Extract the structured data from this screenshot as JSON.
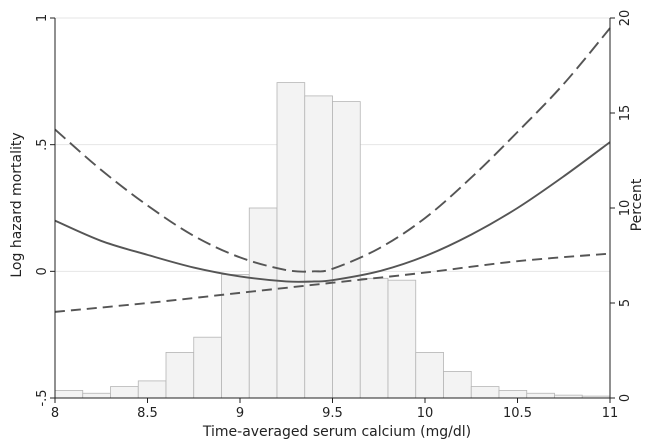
{
  "chart_data": {
    "type": "line",
    "xlabel": "Time-averaged serum calcium (mg/dl)",
    "ylabel_left": "Log hazard mortality",
    "ylabel_right": "Percent",
    "xlim": [
      8,
      11
    ],
    "ylim_left": [
      -0.5,
      1
    ],
    "ylim_right": [
      0,
      20
    ],
    "x_ticks": [
      {
        "value": 8,
        "label": "8"
      },
      {
        "value": 8.5,
        "label": "8.5"
      },
      {
        "value": 9,
        "label": "9"
      },
      {
        "value": 9.5,
        "label": "9.5"
      },
      {
        "value": 10,
        "label": "10"
      },
      {
        "value": 10.5,
        "label": "10.5"
      },
      {
        "value": 11,
        "label": "11"
      }
    ],
    "y_left_ticks": [
      {
        "value": -0.5,
        "label": "-.5"
      },
      {
        "value": 0,
        "label": "0"
      },
      {
        "value": 0.5,
        "label": ".5"
      },
      {
        "value": 1,
        "label": "1"
      }
    ],
    "y_right_ticks": [
      {
        "value": 0,
        "label": "0"
      },
      {
        "value": 5,
        "label": "5"
      },
      {
        "value": 10,
        "label": "10"
      },
      {
        "value": 15,
        "label": "15"
      },
      {
        "value": 20,
        "label": "20"
      }
    ],
    "grid": "horizontal lines at left-axis ticks",
    "histogram": {
      "axis": "right",
      "bin_width": 0.15,
      "bin_starts": [
        8.0,
        8.15,
        8.3,
        8.45,
        8.6,
        8.75,
        8.9,
        9.05,
        9.2,
        9.35,
        9.5,
        9.65,
        9.8,
        9.95,
        10.1,
        10.25,
        10.4,
        10.55,
        10.7,
        10.85
      ],
      "percent": [
        0.4,
        0.25,
        0.6,
        0.9,
        2.4,
        3.2,
        6.5,
        10.0,
        16.6,
        15.9,
        15.6,
        6.3,
        6.2,
        2.4,
        1.4,
        0.6,
        0.4,
        0.25,
        0.15,
        0.1
      ]
    },
    "series": [
      {
        "line_style": "solid",
        "x": [
          8.0,
          8.25,
          8.5,
          8.75,
          9.0,
          9.25,
          9.4,
          9.5,
          9.75,
          10.0,
          10.25,
          10.5,
          10.75,
          11.0
        ],
        "y": [
          0.2,
          0.12,
          0.065,
          0.015,
          -0.02,
          -0.04,
          -0.04,
          -0.035,
          0.0,
          0.06,
          0.145,
          0.25,
          0.375,
          0.51
        ]
      },
      {
        "line_style": "long-dash",
        "x": [
          8.0,
          8.25,
          8.5,
          8.75,
          9.0,
          9.25,
          9.4,
          9.5,
          9.75,
          10.0,
          10.25,
          10.5,
          10.75,
          11.0
        ],
        "y": [
          0.56,
          0.4,
          0.26,
          0.14,
          0.055,
          0.005,
          0.0,
          0.01,
          0.09,
          0.21,
          0.37,
          0.55,
          0.74,
          0.96
        ]
      },
      {
        "line_style": "dashed",
        "x": [
          8.0,
          8.5,
          9.0,
          9.5,
          10.0,
          10.5,
          11.0
        ],
        "y": [
          -0.16,
          -0.125,
          -0.085,
          -0.045,
          -0.005,
          0.04,
          0.07
        ]
      }
    ]
  }
}
